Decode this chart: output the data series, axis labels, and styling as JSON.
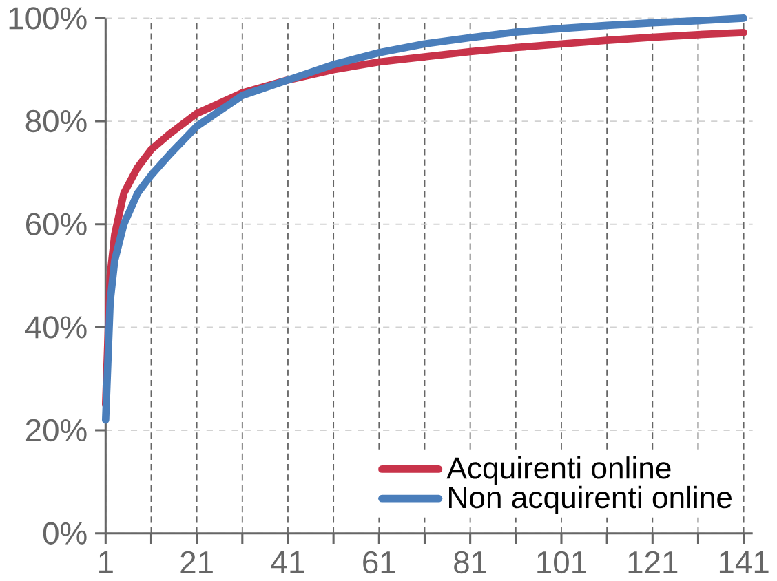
{
  "chart_data": {
    "type": "line",
    "x": [
      1,
      2,
      3,
      5,
      8,
      11,
      15,
      21,
      31,
      41,
      51,
      61,
      71,
      81,
      91,
      101,
      111,
      121,
      131,
      141
    ],
    "series": [
      {
        "name": "Acquirenti online",
        "color": "#c8334a",
        "values": [
          25,
          50,
          58,
          66,
          71,
          74.5,
          77.5,
          81.5,
          85.5,
          88,
          90,
          91.5,
          92.5,
          93.5,
          94.3,
          95,
          95.7,
          96.3,
          96.8,
          97.2
        ]
      },
      {
        "name": "Non acquirenti online",
        "color": "#4a7ebb",
        "values": [
          22,
          45,
          53,
          60,
          66,
          69.5,
          73.5,
          79,
          85,
          88,
          91,
          93.3,
          95,
          96.2,
          97.3,
          98,
          98.6,
          99.1,
          99.5,
          100
        ]
      }
    ],
    "xlim": [
      1,
      141
    ],
    "xticks": [
      1,
      {
        "value": 11,
        "label": null
      },
      21,
      {
        "value": 31,
        "label": null
      },
      41,
      {
        "value": 51,
        "label": null
      },
      61,
      {
        "value": 71,
        "label": null
      },
      81,
      {
        "value": 91,
        "label": null
      },
      101,
      {
        "value": 111,
        "label": null
      },
      121,
      {
        "value": 131,
        "label": null
      },
      141
    ],
    "ylim": [
      0,
      100
    ],
    "yticks": [
      {
        "value": 0,
        "label": "0%"
      },
      {
        "value": 20,
        "label": "20%"
      },
      {
        "value": 40,
        "label": "40%"
      },
      {
        "value": 60,
        "label": "60%"
      },
      {
        "value": 80,
        "label": "80%"
      },
      {
        "value": 100,
        "label": "100%"
      }
    ],
    "grid": true,
    "legend": "bottom right",
    "marker": "none",
    "line_style": "solid"
  }
}
